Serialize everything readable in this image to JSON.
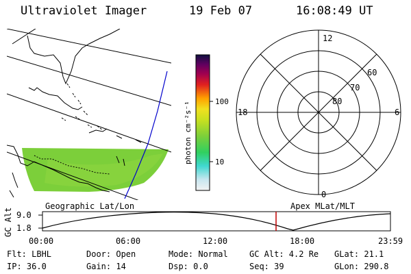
{
  "header": {
    "title": "Ultraviolet Imager",
    "date": "19 Feb 07",
    "time": "16:08:49 UT"
  },
  "geo_panel": {
    "label": "Geographic Lat/Lon"
  },
  "apex_panel": {
    "label": "Apex MLat/MLT",
    "mlt_labels": {
      "top": "12",
      "left": "18",
      "right": "6",
      "bottom": "0"
    },
    "lat_labels": [
      "60",
      "70",
      "80"
    ]
  },
  "colorbar": {
    "unit_label": "photon cm⁻²s⁻¹",
    "tick_100": "100",
    "tick_10": "10"
  },
  "altitude_plot": {
    "ylabel": "GC Alt",
    "ymax": "9.0",
    "ymin": "1.8",
    "x_ticks": [
      "00:00",
      "06:00",
      "12:00",
      "18:00",
      "23:59"
    ],
    "marker_time": "16:08:49"
  },
  "info": {
    "flt": "Flt: LBHL",
    "ip": "IP: 36.0",
    "door": "Door: Open",
    "gain": "Gain: 14",
    "mode": "Mode: Normal",
    "dsp": "Dsp:    0.0",
    "gcalt": "GC Alt: 4.2 Re",
    "seq": "Seq: 39",
    "glat": "GLat:  21.1",
    "glon": "GLon: 290.8"
  },
  "colors": {
    "orbit_track": "#0000cc",
    "time_marker": "#c00000",
    "image_green": "#7ccf3a"
  }
}
